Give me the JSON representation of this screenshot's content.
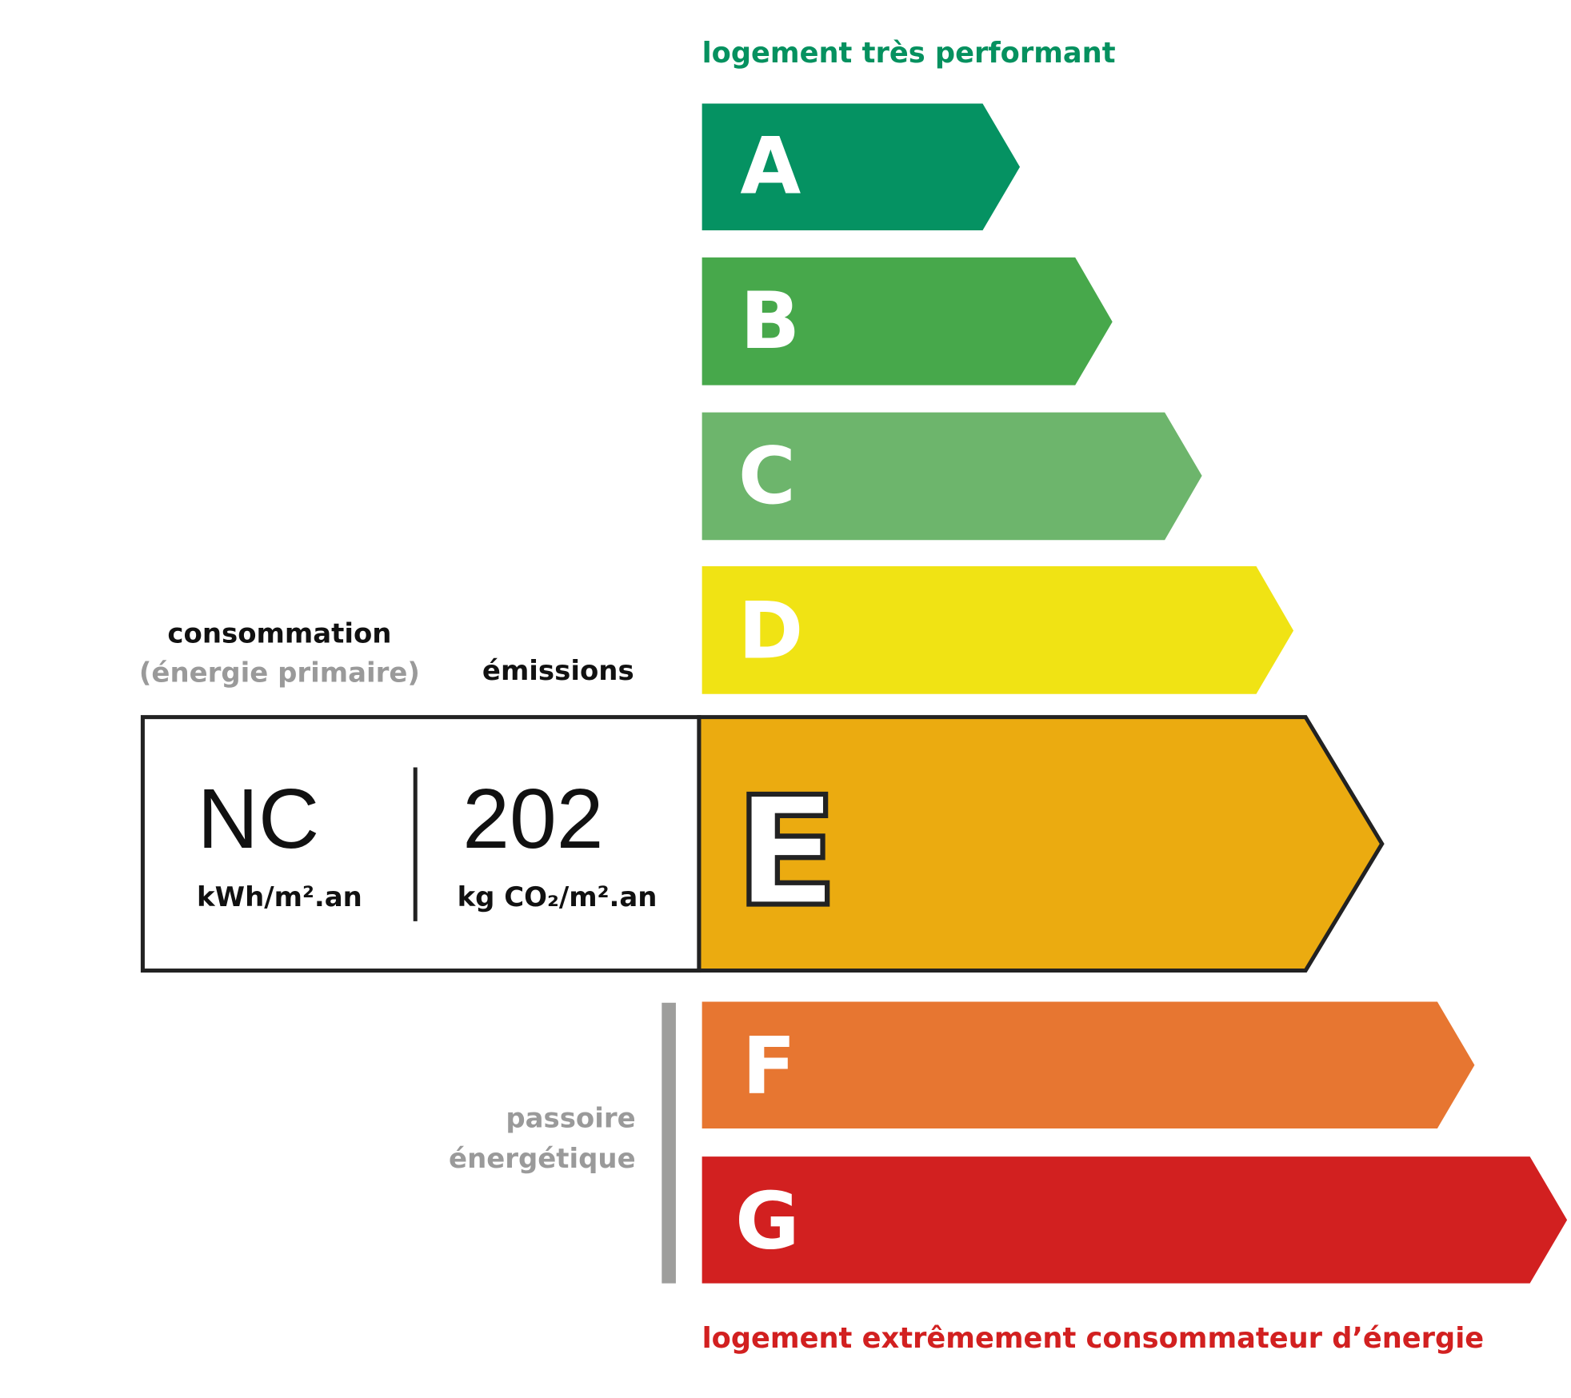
{
  "top_label": "logement très performant",
  "bottom_label": "logement extrêmement consommateur d’énergie",
  "consumption": {
    "title": "consommation",
    "subtitle": "(énergie primaire)",
    "value": "NC",
    "unit": "kWh/m².an"
  },
  "emissions": {
    "title": "émissions",
    "value": "202",
    "unit": "kg CO₂/m².an"
  },
  "passoire_label": [
    "passoire",
    "énergétique"
  ],
  "current_class": "E",
  "classes": [
    {
      "letter": "A",
      "color": "#059262"
    },
    {
      "letter": "B",
      "color": "#47a84b"
    },
    {
      "letter": "C",
      "color": "#6db56c"
    },
    {
      "letter": "D",
      "color": "#f0e314"
    },
    {
      "letter": "E",
      "color": "#ebab10"
    },
    {
      "letter": "F",
      "color": "#e77631"
    },
    {
      "letter": "G",
      "color": "#d22020"
    }
  ],
  "colors": {
    "top_label": "#05915f",
    "bottom_label": "#d22020",
    "muted": "#9a9a9a"
  }
}
